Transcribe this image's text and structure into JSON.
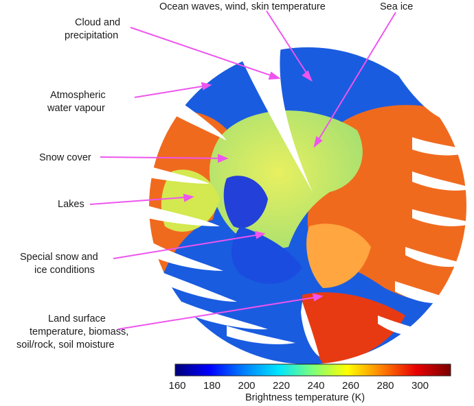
{
  "labels": {
    "ocean": "Ocean waves, wind, skin temperature",
    "seaice": "Sea ice",
    "cloud": [
      "Cloud and",
      "precipitation"
    ],
    "vapour": [
      "Atmospheric",
      "water vapour"
    ],
    "snow": "Snow cover",
    "lakes": "Lakes",
    "special": [
      "Special snow and",
      "ice conditions"
    ],
    "land": [
      "Land surface",
      "temperature, biomass,",
      "soil/rock, soil moisture"
    ]
  },
  "colorbar": {
    "title": "Brightness temperature (K)",
    "ticks": [
      "160",
      "180",
      "200",
      "220",
      "240",
      "260",
      "280",
      "300"
    ],
    "colors": [
      "#00007a",
      "#0000ff",
      "#0080ff",
      "#00e5ff",
      "#7dff7a",
      "#ffff00",
      "#ff8000",
      "#e80000",
      "#7a0000"
    ]
  },
  "colors": {
    "arrow": "#ee55ee",
    "ocean": "#1a5ce0",
    "land": "#f06a1e",
    "ice": "#cfe84a"
  }
}
